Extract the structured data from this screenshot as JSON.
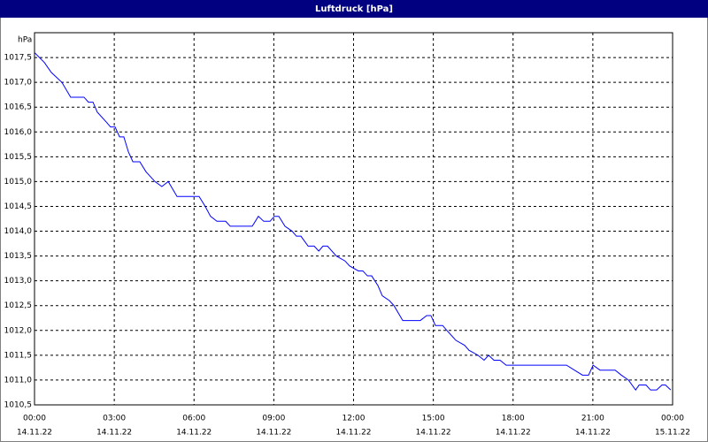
{
  "chart_data": {
    "type": "line",
    "title": "Luftdruck [hPa]",
    "y_unit": "hPa",
    "color": "#0000ff",
    "grid": true,
    "x": [
      0,
      0.37,
      0.63,
      1.03,
      1.36,
      1.86,
      2.03,
      2.2,
      2.36,
      2.7,
      2.86,
      3.03,
      3.2,
      3.36,
      3.53,
      3.7,
      3.96,
      4.19,
      4.53,
      4.79,
      5.03,
      5.36,
      6.03,
      6.19,
      6.42,
      6.62,
      6.86,
      7.19,
      7.36,
      8.19,
      8.42,
      8.62,
      8.86,
      9.02,
      9.19,
      9.42,
      9.69,
      9.85,
      10.02,
      10.29,
      10.52,
      10.69,
      10.85,
      11.02,
      11.35,
      11.68,
      11.85,
      12.18,
      12.35,
      12.52,
      12.68,
      12.92,
      13.08,
      13.35,
      13.52,
      13.85,
      14.51,
      14.75,
      14.91,
      15.08,
      15.35,
      15.51,
      15.85,
      16.18,
      16.34,
      16.68,
      16.91,
      17.08,
      17.28,
      17.51,
      17.74,
      20.01,
      20.61,
      20.84,
      21.01,
      21.27,
      21.84,
      22.07,
      22.34,
      22.61,
      22.74,
      23.0,
      23.17,
      23.4,
      23.6,
      23.73,
      23.93
    ],
    "values": [
      1017.6,
      1017.4,
      1017.2,
      1017.0,
      1016.7,
      1016.7,
      1016.6,
      1016.6,
      1016.4,
      1016.2,
      1016.1,
      1016.1,
      1015.9,
      1015.9,
      1015.6,
      1015.4,
      1015.4,
      1015.2,
      1015.0,
      1014.9,
      1015.0,
      1014.7,
      1014.7,
      1014.7,
      1014.5,
      1014.3,
      1014.2,
      1014.2,
      1014.1,
      1014.1,
      1014.3,
      1014.2,
      1014.2,
      1014.3,
      1014.3,
      1014.1,
      1014.0,
      1013.9,
      1013.9,
      1013.7,
      1013.7,
      1013.6,
      1013.7,
      1013.7,
      1013.5,
      1013.4,
      1013.3,
      1013.2,
      1013.2,
      1013.1,
      1013.1,
      1012.9,
      1012.7,
      1012.6,
      1012.5,
      1012.2,
      1012.2,
      1012.3,
      1012.3,
      1012.1,
      1012.1,
      1012.0,
      1011.8,
      1011.7,
      1011.6,
      1011.5,
      1011.4,
      1011.5,
      1011.4,
      1011.4,
      1011.3,
      1011.3,
      1011.1,
      1011.1,
      1011.3,
      1011.2,
      1011.2,
      1011.1,
      1011.0,
      1010.8,
      1010.9,
      1010.9,
      1010.8,
      1010.8,
      1010.9,
      1010.9,
      1010.8
    ],
    "xlim": [
      0,
      24
    ],
    "xticks": [
      {
        "value": 0,
        "label": "00:00"
      },
      {
        "value": 3,
        "label": "03:00"
      },
      {
        "value": 6,
        "label": "06:00"
      },
      {
        "value": 9,
        "label": "09:00"
      },
      {
        "value": 12,
        "label": "12:00"
      },
      {
        "value": 15,
        "label": "15:00"
      },
      {
        "value": 18,
        "label": "18:00"
      },
      {
        "value": 21,
        "label": "21:00"
      },
      {
        "value": 24,
        "label": "00:00"
      }
    ],
    "xtick_dates": [
      "14.11.22",
      "14.11.22",
      "14.11.22",
      "14.11.22",
      "14.11.22",
      "14.11.22",
      "14.11.22",
      "14.11.22",
      "15.11.22"
    ],
    "ylim": [
      1010.5,
      1018.0
    ],
    "yticks": [
      {
        "value": 1010.5,
        "label": "1010,5"
      },
      {
        "value": 1011.0,
        "label": "1011,0"
      },
      {
        "value": 1011.5,
        "label": "1011,5"
      },
      {
        "value": 1012.0,
        "label": "1012,0"
      },
      {
        "value": 1012.5,
        "label": "1012,5"
      },
      {
        "value": 1013.0,
        "label": "1013,0"
      },
      {
        "value": 1013.5,
        "label": "1013,5"
      },
      {
        "value": 1014.0,
        "label": "1014,0"
      },
      {
        "value": 1014.5,
        "label": "1014,5"
      },
      {
        "value": 1015.0,
        "label": "1015,0"
      },
      {
        "value": 1015.5,
        "label": "1015,5"
      },
      {
        "value": 1016.0,
        "label": "1016,0"
      },
      {
        "value": 1016.5,
        "label": "1016,5"
      },
      {
        "value": 1017.0,
        "label": "1017,0"
      },
      {
        "value": 1017.5,
        "label": "1017,5"
      }
    ]
  }
}
